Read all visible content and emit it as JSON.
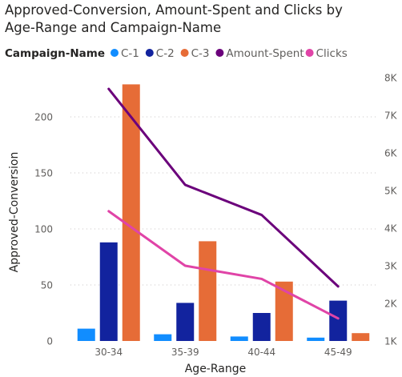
{
  "chart_data": {
    "type": "bar",
    "title": "Approved-Conversion, Amount-Spent and Clicks by Age-Range and Campaign-Name",
    "title_lines": [
      "Approved-Conversion, Amount-Spent and Clicks by",
      "Age-Range and Campaign-Name"
    ],
    "legend_title": "Campaign-Name",
    "legend_position": "top-left",
    "xlabel": "Age-Range",
    "ylabel": "Approved-Conversion",
    "categories": [
      "30-34",
      "35-39",
      "40-44",
      "45-49"
    ],
    "ylim": [
      0,
      230
    ],
    "y_ticks": [
      0,
      50,
      100,
      150,
      200
    ],
    "y_tick_labels": [
      "0",
      "50",
      "100",
      "150",
      "200"
    ],
    "y2lim": [
      1000,
      8000
    ],
    "y2_ticks": [
      1000,
      2000,
      3000,
      4000,
      5000,
      6000,
      7000,
      8000
    ],
    "y2_tick_labels": [
      "1K",
      "2K",
      "3K",
      "4K",
      "5K",
      "6K",
      "7K",
      "8K"
    ],
    "grid": true,
    "series": [
      {
        "name": "C-1",
        "kind": "bar",
        "axis": "left",
        "color": "#118DFF",
        "values": [
          11,
          6,
          4,
          3
        ]
      },
      {
        "name": "C-2",
        "kind": "bar",
        "axis": "left",
        "color": "#12239E",
        "values": [
          88,
          34,
          25,
          36
        ]
      },
      {
        "name": "C-3",
        "kind": "bar",
        "axis": "left",
        "color": "#E66C37",
        "values": [
          229,
          89,
          53,
          7
        ]
      },
      {
        "name": "Amount-Spent",
        "kind": "line",
        "axis": "right",
        "color": "#6B007B",
        "values": [
          7700,
          5150,
          4350,
          2450
        ]
      },
      {
        "name": "Clicks",
        "kind": "line",
        "axis": "right",
        "color": "#E044A7",
        "values": [
          4450,
          3000,
          2650,
          1600
        ]
      }
    ]
  },
  "colors": {
    "title": "#252423",
    "axis_text": "#605E5C",
    "axis_title": "#252423",
    "gridline": "#C8C6C4"
  }
}
